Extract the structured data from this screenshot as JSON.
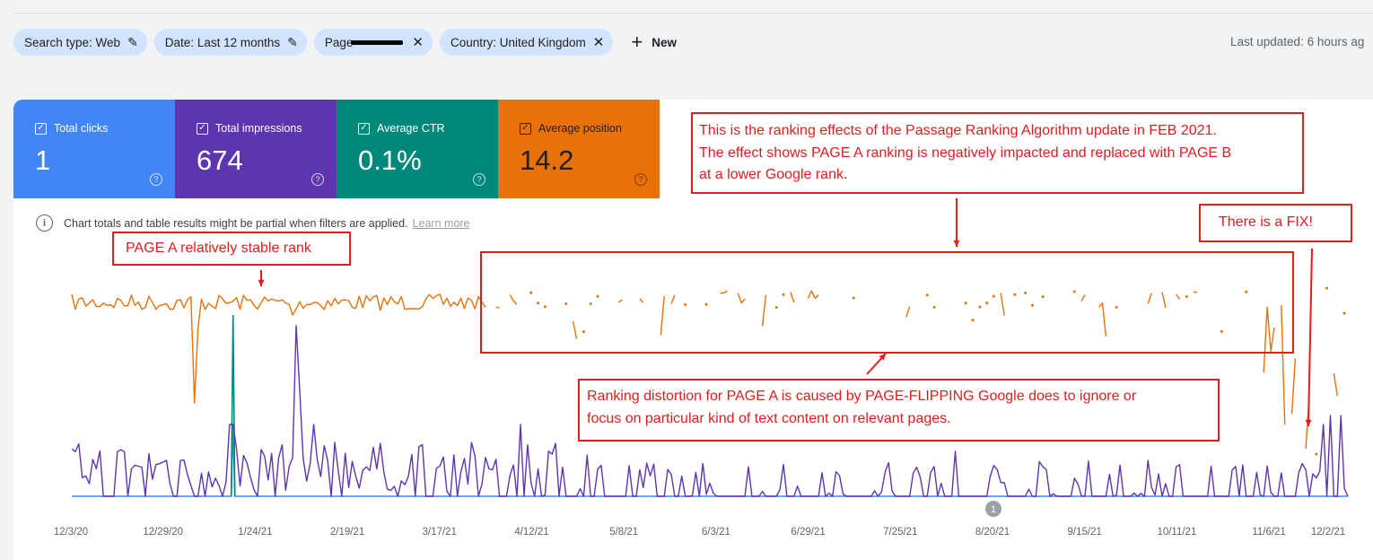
{
  "filters": [
    {
      "label": "Search type: Web",
      "icon": "pencil-icon"
    },
    {
      "label": "Date: Last 12 months",
      "icon": "pencil-icon"
    },
    {
      "label": "Page",
      "icon": "close-icon",
      "redacted": true
    },
    {
      "label": "Country: United Kingdom",
      "icon": "close-icon"
    }
  ],
  "new_button": {
    "label": "New",
    "icon": "plus-icon"
  },
  "last_updated": "Last updated: 6 hours ag",
  "metrics": [
    {
      "label": "Total clicks",
      "value": "1",
      "color": "#4285f4",
      "checked": true
    },
    {
      "label": "Total impressions",
      "value": "674",
      "color": "#5e35b1",
      "checked": true
    },
    {
      "label": "Average CTR",
      "value": "0.1%",
      "color": "#00897b",
      "checked": true
    },
    {
      "label": "Average position",
      "value": "14.2",
      "color": "#e8710a",
      "checked": true
    }
  ],
  "notice": {
    "text": "Chart totals and table results might be partial when filters are applied.",
    "link": "Learn more"
  },
  "annotations": {
    "page_a_stable": "PAGE A relatively stable rank",
    "passage_update": [
      "This is the ranking effects of the Passage Ranking Algorithm update in FEB 2021.",
      "The effect shows PAGE A ranking is negatively impacted and replaced with PAGE B",
      "at a lower Google rank."
    ],
    "distortion": [
      "Ranking distortion for PAGE A is caused by PAGE-FLIPPING Google does to ignore or",
      "focus on particular kind of text content on relevant pages."
    ],
    "fix": "There is a FIX!"
  },
  "chart_data": {
    "type": "line",
    "x_tick_labels": [
      "12/3/20",
      "12/29/20",
      "1/24/21",
      "2/19/21",
      "3/17/21",
      "4/12/21",
      "5/8/21",
      "6/3/21",
      "6/29/21",
      "7/25/21",
      "8/20/21",
      "9/15/21",
      "10/11/21",
      "11/6/21",
      "12/2/21"
    ],
    "marker_label": "1",
    "series": [
      {
        "metric": "Average position",
        "color": "#e8710a"
      },
      {
        "metric": "Total impressions",
        "color": "#5e35b1"
      },
      {
        "metric": "Total clicks",
        "color": "#4285f4"
      },
      {
        "metric": "Average CTR",
        "color": "#00897b"
      }
    ]
  }
}
